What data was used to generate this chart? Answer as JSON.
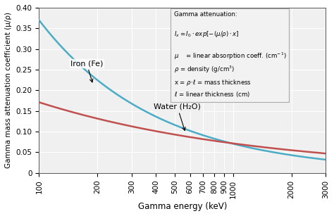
{
  "title": "",
  "xlabel": "Gamma energy (keV)",
  "ylabel": "Gamma mass attenuation coefficient (μ/ρ)",
  "xlim": [
    100,
    3000
  ],
  "ylim": [
    0,
    0.4
  ],
  "yticks": [
    0,
    0.05,
    0.1,
    0.15,
    0.2,
    0.25,
    0.3,
    0.35,
    0.4
  ],
  "xtick_labels": [
    "100",
    "200",
    "300",
    "400",
    "500",
    "600",
    "700",
    "800",
    "900",
    "1000",
    "2000",
    "3000"
  ],
  "xtick_values": [
    100,
    200,
    300,
    400,
    500,
    600,
    700,
    800,
    900,
    1000,
    2000,
    3000
  ],
  "iron_color": "#4bacc6",
  "water_color": "#c0504d",
  "bg_color": "#f0f0f0",
  "grid_color": "#ffffff",
  "annotation_box_color": "#f2f2f2",
  "annotation_box_edge": "#aaaaaa",
  "iron_label": "Iron (Fe)",
  "water_label": "Water (H₂O)",
  "annot_title": "Gamma attenuation:",
  "annot_formula": "Iₓ = I₀·exp[-(μ/ρ)·x]",
  "annot_lines": [
    "μ    = linear absorption coeff. (cm⁻¹)",
    "ρ = density (g/cm³)",
    "x = ρ·ℓ = mass thickness",
    "ℓ = linear thickness (cm)"
  ]
}
